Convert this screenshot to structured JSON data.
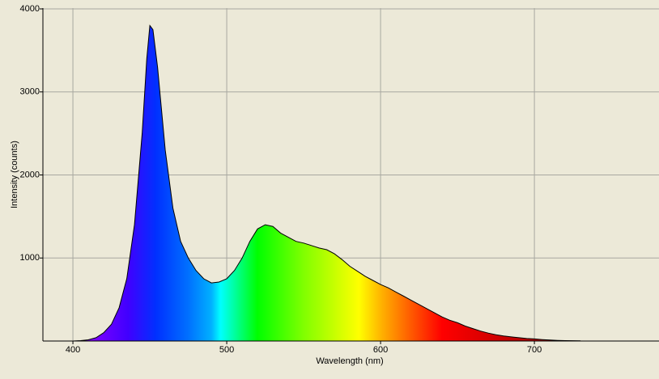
{
  "chart_data": {
    "type": "area",
    "x_label": "Wavelength (nm)",
    "y_label": "Intensity (counts)",
    "x": [
      400,
      405,
      410,
      415,
      420,
      425,
      430,
      435,
      440,
      445,
      448,
      450,
      452,
      455,
      460,
      465,
      470,
      475,
      480,
      485,
      490,
      495,
      500,
      505,
      510,
      515,
      520,
      525,
      530,
      535,
      540,
      545,
      550,
      555,
      560,
      565,
      570,
      575,
      580,
      585,
      590,
      595,
      600,
      605,
      610,
      615,
      620,
      625,
      630,
      635,
      640,
      645,
      650,
      655,
      660,
      665,
      670,
      675,
      680,
      685,
      690,
      695,
      700,
      705,
      710,
      715,
      720,
      730
    ],
    "values": [
      0,
      5,
      15,
      40,
      100,
      200,
      400,
      750,
      1400,
      2500,
      3400,
      3800,
      3750,
      3300,
      2300,
      1600,
      1200,
      1000,
      850,
      750,
      700,
      710,
      750,
      850,
      1000,
      1200,
      1350,
      1400,
      1380,
      1300,
      1250,
      1200,
      1180,
      1150,
      1120,
      1100,
      1050,
      980,
      900,
      840,
      780,
      730,
      680,
      640,
      590,
      540,
      490,
      440,
      390,
      340,
      290,
      250,
      220,
      180,
      150,
      120,
      95,
      75,
      60,
      50,
      40,
      30,
      25,
      18,
      12,
      8,
      5,
      2
    ],
    "line_color": "#000000",
    "xlim": [
      380.5,
      781
    ],
    "ylim": [
      0,
      4000
    ],
    "xticks": [
      400,
      500,
      600,
      700
    ],
    "yticks": [
      1000,
      2000,
      3000,
      4000
    ],
    "grid": true
  }
}
